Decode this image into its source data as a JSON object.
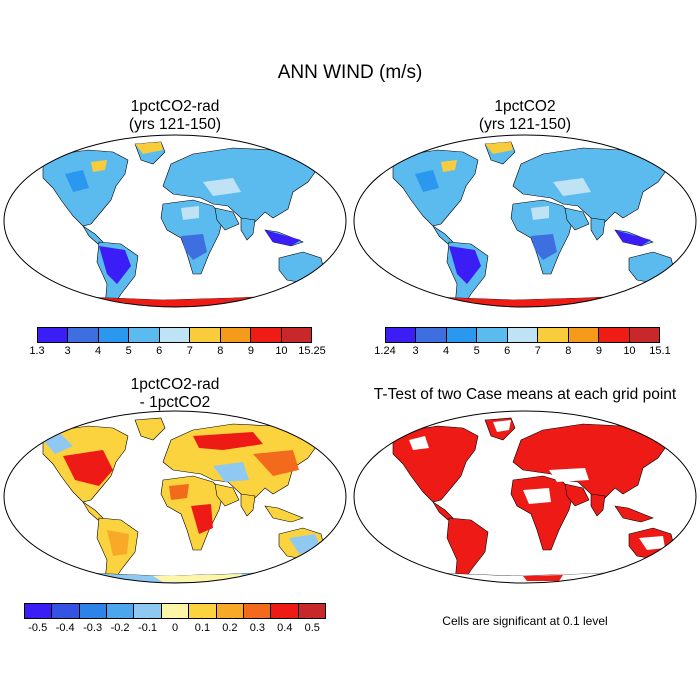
{
  "title": "ANN WIND (m/s)",
  "panels": [
    {
      "title_line1": "1pctCO2-rad",
      "title_line2": "(yrs 121-150)"
    },
    {
      "title_line1": "1pctCO2",
      "title_line2": "(yrs 121-150)"
    },
    {
      "title_line1": "1pctCO2-rad",
      "title_line2": "- 1pctCO2"
    },
    {
      "title_line1": "T-Test of two Case means at each grid point",
      "title_line2": ""
    }
  ],
  "colorbars": {
    "wind1": {
      "colors": [
        "#3a1ef5",
        "#3d6fe0",
        "#2b98ef",
        "#5bbbee",
        "#bfe3f5",
        "#f8cc3b",
        "#f59a1a",
        "#ef1c16",
        "#c8282a"
      ],
      "labels": [
        "1.3",
        "3",
        "4",
        "5",
        "6",
        "7",
        "8",
        "9",
        "10",
        "15.25"
      ]
    },
    "wind2": {
      "colors": [
        "#3a1ef5",
        "#3d6fe0",
        "#2b98ef",
        "#5bbbee",
        "#bfe3f5",
        "#f8cc3b",
        "#f59a1a",
        "#ef1c16",
        "#c8282a"
      ],
      "labels": [
        "1.24",
        "3",
        "4",
        "5",
        "6",
        "7",
        "8",
        "9",
        "10",
        "15.1"
      ]
    },
    "diff": {
      "colors": [
        "#3a1ef5",
        "#3453e2",
        "#2e83e8",
        "#4ba6ee",
        "#8fc8f1",
        "#fdf6a8",
        "#fbd33f",
        "#f9a928",
        "#f46a1c",
        "#ee1a16",
        "#c8282a"
      ],
      "labels": [
        "-0.5",
        "-0.4",
        "-0.3",
        "-0.2",
        "-0.1",
        "0",
        "0.1",
        "0.2",
        "0.3",
        "0.4",
        "0.5"
      ]
    }
  },
  "footnote": "Cells are significant at 0.1 level"
}
